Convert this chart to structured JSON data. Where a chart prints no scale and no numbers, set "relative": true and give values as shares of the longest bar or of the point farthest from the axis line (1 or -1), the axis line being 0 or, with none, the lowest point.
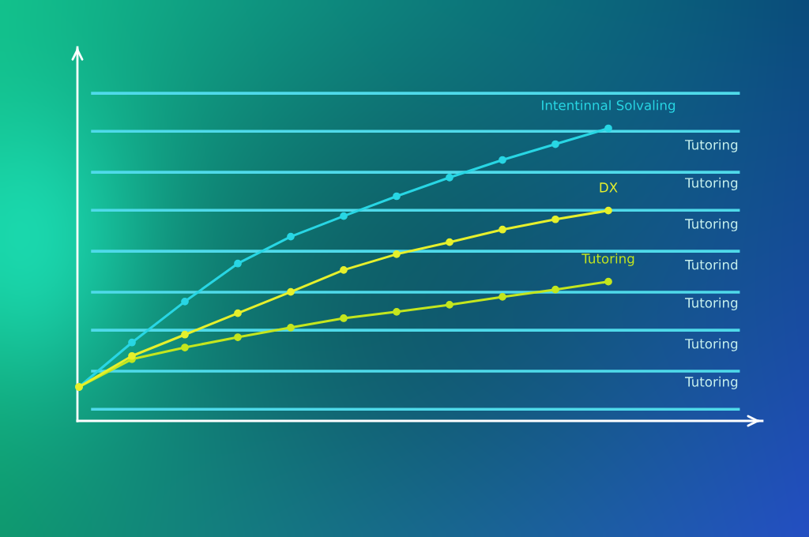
{
  "chart_data": {
    "type": "line",
    "relative": true,
    "marker": "circle",
    "categories": [
      null,
      null,
      null,
      null,
      null,
      null,
      null,
      null,
      null,
      null,
      null
    ],
    "series": [
      {
        "name": "Intentinnal Solvaling",
        "color": "#28d6e4",
        "values": [
          0.116,
          0.268,
          0.408,
          0.538,
          0.63,
          0.7,
          0.768,
          0.832,
          0.892,
          0.946,
          1.0
        ]
      },
      {
        "name": "Tutoring",
        "color": "#c4e61e",
        "values": [
          0.116,
          0.211,
          0.251,
          0.286,
          0.319,
          0.351,
          0.373,
          0.397,
          0.424,
          0.449,
          0.476
        ]
      },
      {
        "name": "DX",
        "color": "#e6f02c",
        "values": [
          0.116,
          0.222,
          0.295,
          0.368,
          0.441,
          0.516,
          0.57,
          0.611,
          0.654,
          0.689,
          0.719
        ]
      }
    ],
    "ref_lines": [
      {
        "axis": "y",
        "value": 1.12,
        "color": "#4fdaea"
      },
      {
        "axis": "y",
        "value": 0.99,
        "color": "#4fdaea"
      },
      {
        "axis": "y",
        "value": 0.85,
        "color": "#4fdaea",
        "label": "Tutoring"
      },
      {
        "axis": "y",
        "value": 0.72,
        "color": "#4fdaea",
        "label": "Tutoring"
      },
      {
        "axis": "y",
        "value": 0.58,
        "color": "#4fdaea",
        "label": "Tutoring"
      },
      {
        "axis": "y",
        "value": 0.44,
        "color": "#4fdaea",
        "label": "Tutorind"
      },
      {
        "axis": "y",
        "value": 0.31,
        "color": "#4fdaea",
        "label": "Tutoring"
      },
      {
        "axis": "y",
        "value": 0.17,
        "color": "#4fdaea",
        "label": "Tutoring"
      },
      {
        "axis": "y",
        "value": 0.04,
        "color": "#4fdaea",
        "label": "Tutoring"
      }
    ]
  }
}
